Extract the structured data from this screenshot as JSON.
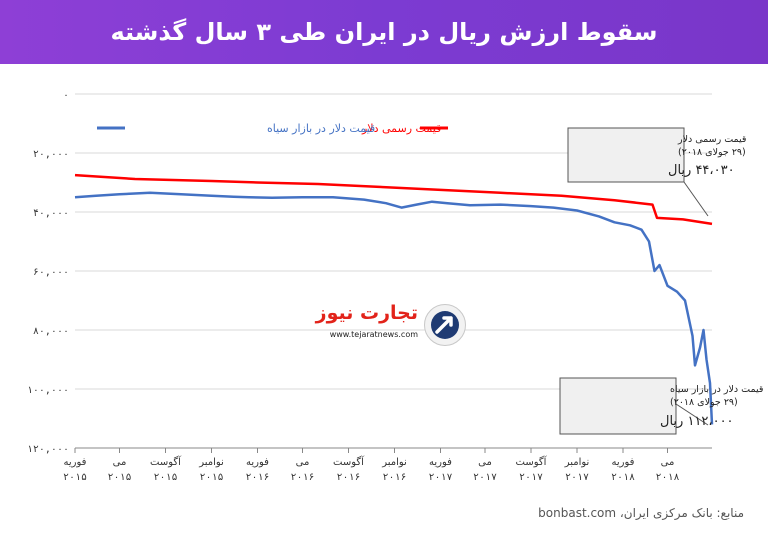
{
  "header": {
    "title": "سقوط ارزش ریال در ایران طی ۳ سال گذشته",
    "background": "#7d3bd1"
  },
  "legend": {
    "black_market": "قیمت دلار در بازار سیاه",
    "official": "قیمت رسمی دلار"
  },
  "annotations": {
    "official": {
      "line1": "قیمت رسمی دلار",
      "line2": "(۲۹ جولای ۲۰۱۸)",
      "value": "۴۴،۰۳۰ ریال"
    },
    "black_market": {
      "line1": "قیمت دلار در بازار سیاه",
      "line2": "(۲۹ جولای ۲۰۱۸)",
      "value": "۱۱۲،۰۰۰ ریال"
    }
  },
  "logo": {
    "name": "تجارت نیوز",
    "url": "www.tejaratnews.com"
  },
  "source": "منابع: بانک مرکزی ایران، bonbast.com",
  "colors": {
    "black_market": "#4472c4",
    "official": "#ff0000",
    "grid": "#d9d9d9"
  },
  "chart_data": {
    "type": "line",
    "y_inverted": true,
    "ylim": [
      0,
      120000
    ],
    "yticks": [
      0,
      20000,
      40000,
      60000,
      80000,
      100000,
      120000
    ],
    "ytick_labels": [
      "۰",
      "۲۰,۰۰۰",
      "۴۰,۰۰۰",
      "۶۰,۰۰۰",
      "۸۰,۰۰۰",
      "۱۰۰,۰۰۰",
      "۱۲۰,۰۰۰"
    ],
    "x_range": [
      "2015-02-01",
      "2018-07-29"
    ],
    "xticks": [
      {
        "date": "2015-02-01",
        "month": "فوریه",
        "year": "۲۰۱۵"
      },
      {
        "date": "2015-05-01",
        "month": "می",
        "year": "۲۰۱۵"
      },
      {
        "date": "2015-08-01",
        "month": "آگوست",
        "year": "۲۰۱۵"
      },
      {
        "date": "2015-11-01",
        "month": "نوامبر",
        "year": "۲۰۱۵"
      },
      {
        "date": "2016-02-01",
        "month": "فوریه",
        "year": "۲۰۱۶"
      },
      {
        "date": "2016-05-01",
        "month": "می",
        "year": "۲۰۱۶"
      },
      {
        "date": "2016-08-01",
        "month": "آگوست",
        "year": "۲۰۱۶"
      },
      {
        "date": "2016-11-01",
        "month": "نوامبر",
        "year": "۲۰۱۶"
      },
      {
        "date": "2017-02-01",
        "month": "فوریه",
        "year": "۲۰۱۷"
      },
      {
        "date": "2017-05-01",
        "month": "می",
        "year": "۲۰۱۷"
      },
      {
        "date": "2017-08-01",
        "month": "آگوست",
        "year": "۲۰۱۷"
      },
      {
        "date": "2017-11-01",
        "month": "نوامبر",
        "year": "۲۰۱۷"
      },
      {
        "date": "2018-02-01",
        "month": "فوریه",
        "year": "۲۰۱۸"
      },
      {
        "date": "2018-05-01",
        "month": "می",
        "year": "۲۰۱۸"
      }
    ],
    "series": [
      {
        "key": "black_market",
        "points": [
          [
            "2015-02-01",
            35000
          ],
          [
            "2015-03-15",
            34500
          ],
          [
            "2015-05-01",
            34000
          ],
          [
            "2015-07-01",
            33500
          ],
          [
            "2015-09-01",
            34000
          ],
          [
            "2015-11-01",
            34500
          ],
          [
            "2015-12-15",
            34800
          ],
          [
            "2016-01-15",
            35000
          ],
          [
            "2016-03-01",
            35200
          ],
          [
            "2016-05-01",
            35000
          ],
          [
            "2016-07-01",
            35000
          ],
          [
            "2016-09-01",
            35800
          ],
          [
            "2016-10-15",
            37000
          ],
          [
            "2016-11-15",
            38500
          ],
          [
            "2016-12-15",
            37500
          ],
          [
            "2017-01-15",
            36500
          ],
          [
            "2017-02-15",
            37000
          ],
          [
            "2017-04-01",
            37700
          ],
          [
            "2017-06-01",
            37500
          ],
          [
            "2017-08-01",
            38000
          ],
          [
            "2017-09-15",
            38500
          ],
          [
            "2017-11-01",
            39500
          ],
          [
            "2017-12-15",
            41500
          ],
          [
            "2018-01-15",
            43500
          ],
          [
            "2018-02-15",
            44500
          ],
          [
            "2018-03-10",
            46000
          ],
          [
            "2018-03-25",
            50000
          ],
          [
            "2018-04-05",
            60000
          ],
          [
            "2018-04-15",
            58000
          ],
          [
            "2018-05-01",
            65000
          ],
          [
            "2018-05-20",
            67000
          ],
          [
            "2018-06-05",
            70000
          ],
          [
            "2018-06-20",
            82000
          ],
          [
            "2018-06-25",
            92000
          ],
          [
            "2018-07-05",
            86000
          ],
          [
            "2018-07-12",
            80000
          ],
          [
            "2018-07-18",
            90000
          ],
          [
            "2018-07-25",
            98000
          ],
          [
            "2018-07-29",
            112000
          ]
        ]
      },
      {
        "key": "official",
        "points": [
          [
            "2015-02-01",
            27500
          ],
          [
            "2015-06-01",
            28800
          ],
          [
            "2015-11-01",
            29500
          ],
          [
            "2016-02-01",
            30000
          ],
          [
            "2016-06-01",
            30500
          ],
          [
            "2016-10-01",
            31500
          ],
          [
            "2017-02-01",
            32500
          ],
          [
            "2017-06-01",
            33500
          ],
          [
            "2017-10-01",
            34500
          ],
          [
            "2018-01-15",
            36000
          ],
          [
            "2018-04-01",
            37500
          ],
          [
            "2018-04-10",
            42000
          ],
          [
            "2018-06-01",
            42500
          ],
          [
            "2018-07-29",
            44030
          ]
        ]
      }
    ]
  }
}
